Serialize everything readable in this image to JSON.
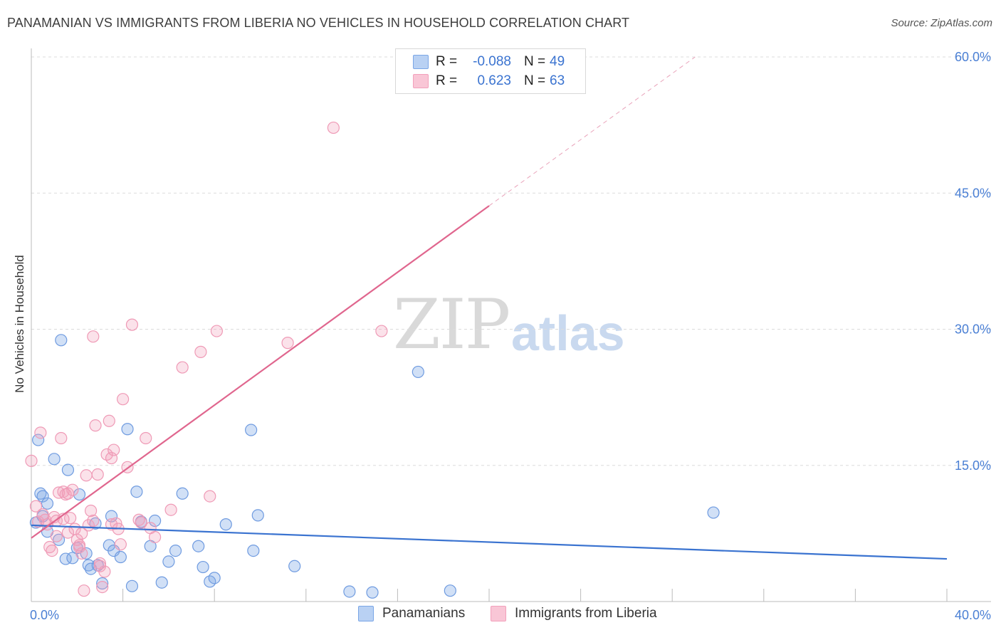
{
  "title": "PANAMANIAN VS IMMIGRANTS FROM LIBERIA NO VEHICLES IN HOUSEHOLD CORRELATION CHART",
  "source": "Source: ZipAtlas.com",
  "watermark": {
    "zip": "ZIP",
    "atlas": "atlas"
  },
  "legend_top": {
    "rows": [
      {
        "r_label": "R =",
        "r_value": "-0.088",
        "n_label": "N =",
        "n_value": "49"
      },
      {
        "r_label": "R =",
        "r_value": "0.623",
        "n_label": "N =",
        "n_value": "63"
      }
    ]
  },
  "legend_bottom": {
    "items": [
      {
        "label": "Panamanians"
      },
      {
        "label": "Immigrants from Liberia"
      }
    ]
  },
  "chart_data": {
    "type": "scatter",
    "title": "PANAMANIAN VS IMMIGRANTS FROM LIBERIA NO VEHICLES IN HOUSEHOLD CORRELATION CHART",
    "xlabel": "",
    "ylabel": "No Vehicles in Household",
    "xlim": [
      0,
      40
    ],
    "ylim": [
      0,
      60
    ],
    "x_tick_labels": [
      "0.0%",
      "40.0%"
    ],
    "y_ticks": [
      15,
      30,
      45,
      60
    ],
    "y_tick_labels": [
      "15.0%",
      "30.0%",
      "45.0%",
      "60.0%"
    ],
    "colors": {
      "panamanians": "#7aa6e6",
      "liberia": "#f2a0bb",
      "blue_line": "#3a73d0",
      "pink_line": "#e0668e"
    },
    "series": [
      {
        "name": "Panamanians",
        "points": [
          [
            0.3,
            17.8
          ],
          [
            0.4,
            11.9
          ],
          [
            0.5,
            11.6
          ],
          [
            0.7,
            10.8
          ],
          [
            1.0,
            15.7
          ],
          [
            1.6,
            14.5
          ],
          [
            2.1,
            11.8
          ],
          [
            1.3,
            28.8
          ],
          [
            0.2,
            8.7
          ],
          [
            0.5,
            9.4
          ],
          [
            0.7,
            7.7
          ],
          [
            1.2,
            6.8
          ],
          [
            1.5,
            4.7
          ],
          [
            1.8,
            4.8
          ],
          [
            2.0,
            5.9
          ],
          [
            2.4,
            5.3
          ],
          [
            2.5,
            4.0
          ],
          [
            2.6,
            3.6
          ],
          [
            2.8,
            8.6
          ],
          [
            2.9,
            4.0
          ],
          [
            3.1,
            2.0
          ],
          [
            3.4,
            6.2
          ],
          [
            3.5,
            9.4
          ],
          [
            3.6,
            5.6
          ],
          [
            3.9,
            4.9
          ],
          [
            4.2,
            19.0
          ],
          [
            4.4,
            1.7
          ],
          [
            4.6,
            12.1
          ],
          [
            4.8,
            8.8
          ],
          [
            5.4,
            8.9
          ],
          [
            5.7,
            2.1
          ],
          [
            6.0,
            4.4
          ],
          [
            6.3,
            5.6
          ],
          [
            6.6,
            11.9
          ],
          [
            7.3,
            6.1
          ],
          [
            7.5,
            3.8
          ],
          [
            7.8,
            2.2
          ],
          [
            8.0,
            2.6
          ],
          [
            8.5,
            8.5
          ],
          [
            9.6,
            18.9
          ],
          [
            9.7,
            5.6
          ],
          [
            9.9,
            9.5
          ],
          [
            11.5,
            3.9
          ],
          [
            13.9,
            1.1
          ],
          [
            14.9,
            1.0
          ],
          [
            16.9,
            25.3
          ],
          [
            18.3,
            1.2
          ],
          [
            29.8,
            9.8
          ],
          [
            5.2,
            6.1
          ]
        ]
      },
      {
        "name": "Immigrants from Liberia",
        "points": [
          [
            0.0,
            15.5
          ],
          [
            0.2,
            10.5
          ],
          [
            0.4,
            18.6
          ],
          [
            0.6,
            9.0
          ],
          [
            0.7,
            8.5
          ],
          [
            0.8,
            6.0
          ],
          [
            0.9,
            5.6
          ],
          [
            1.0,
            9.3
          ],
          [
            1.1,
            7.2
          ],
          [
            1.2,
            12.0
          ],
          [
            1.3,
            18.0
          ],
          [
            1.4,
            12.1
          ],
          [
            1.5,
            11.8
          ],
          [
            1.6,
            7.6
          ],
          [
            1.7,
            9.2
          ],
          [
            1.8,
            12.3
          ],
          [
            1.9,
            8.0
          ],
          [
            2.0,
            6.8
          ],
          [
            2.1,
            6.0
          ],
          [
            2.2,
            5.3
          ],
          [
            2.3,
            1.2
          ],
          [
            2.4,
            13.9
          ],
          [
            2.5,
            8.4
          ],
          [
            2.6,
            10.0
          ],
          [
            2.7,
            29.2
          ],
          [
            2.8,
            19.4
          ],
          [
            2.9,
            14.0
          ],
          [
            3.0,
            3.9
          ],
          [
            3.1,
            1.6
          ],
          [
            3.2,
            3.3
          ],
          [
            3.3,
            16.2
          ],
          [
            3.4,
            19.9
          ],
          [
            3.5,
            15.8
          ],
          [
            3.6,
            16.7
          ],
          [
            3.7,
            8.6
          ],
          [
            3.8,
            8.0
          ],
          [
            3.9,
            6.3
          ],
          [
            4.0,
            22.3
          ],
          [
            4.2,
            14.8
          ],
          [
            4.4,
            30.5
          ],
          [
            4.7,
            9.0
          ],
          [
            5.0,
            18.0
          ],
          [
            5.2,
            8.1
          ],
          [
            5.4,
            7.1
          ],
          [
            6.1,
            10.1
          ],
          [
            6.6,
            25.8
          ],
          [
            7.4,
            27.5
          ],
          [
            7.8,
            11.6
          ],
          [
            8.1,
            29.8
          ],
          [
            11.2,
            28.5
          ],
          [
            13.2,
            52.2
          ],
          [
            15.3,
            29.8
          ],
          [
            0.3,
            8.8
          ],
          [
            0.5,
            9.6
          ],
          [
            1.1,
            8.9
          ],
          [
            1.6,
            11.9
          ],
          [
            2.1,
            6.2
          ],
          [
            2.7,
            8.9
          ],
          [
            3.0,
            4.2
          ],
          [
            3.5,
            8.5
          ],
          [
            4.8,
            8.7
          ],
          [
            2.2,
            7.5
          ],
          [
            1.4,
            9.1
          ]
        ]
      }
    ],
    "trend_lines": [
      {
        "series": "Panamanians",
        "x": [
          0,
          40
        ],
        "y": [
          8.4,
          4.7
        ],
        "style": "solid"
      },
      {
        "series": "Immigrants from Liberia",
        "x": [
          0,
          20
        ],
        "y": [
          7.0,
          43.6
        ],
        "style": "solid"
      },
      {
        "series": "Immigrants from Liberia",
        "x": [
          20,
          29
        ],
        "y": [
          43.6,
          60.0
        ],
        "style": "dashed"
      }
    ]
  }
}
